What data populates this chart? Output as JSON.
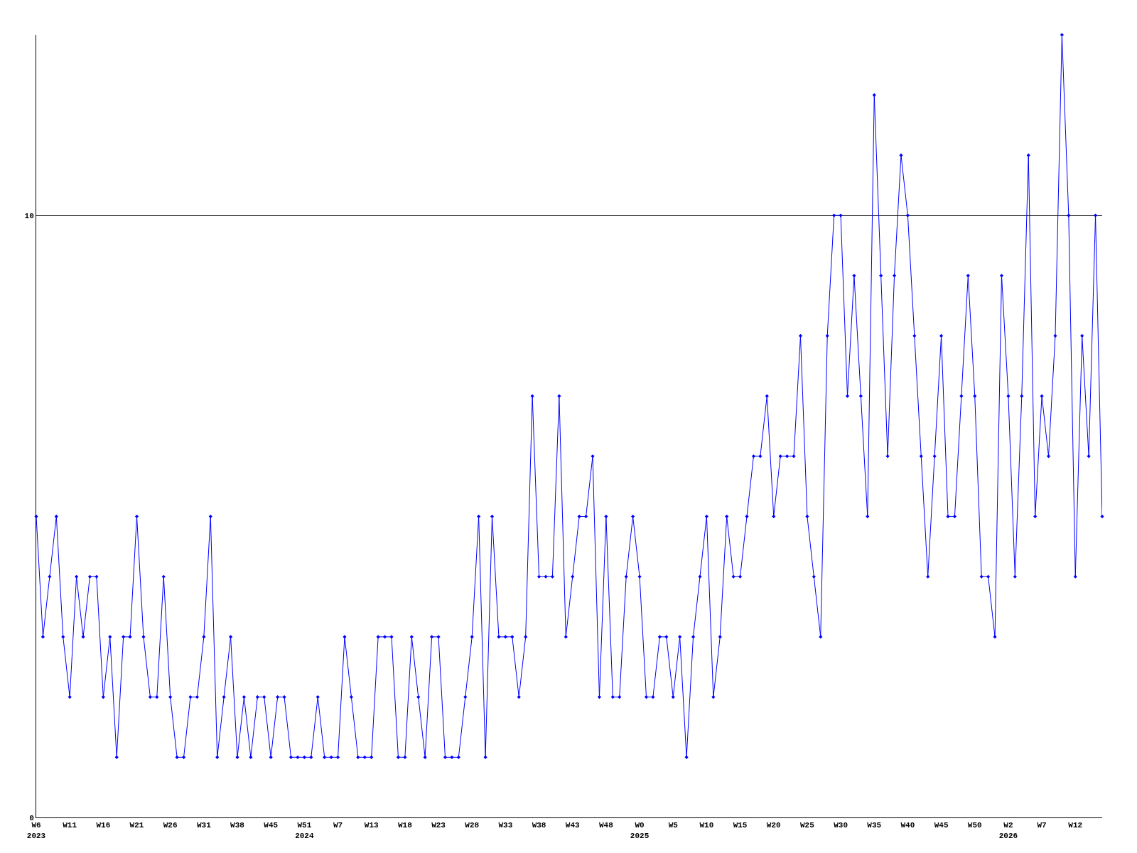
{
  "chart_data": {
    "type": "line",
    "categories": [
      "W6\n2023",
      null,
      null,
      null,
      null,
      "W11",
      null,
      null,
      null,
      null,
      "W16",
      null,
      null,
      null,
      null,
      "W21",
      null,
      null,
      null,
      null,
      "W26",
      null,
      null,
      null,
      null,
      "W31",
      null,
      null,
      null,
      null,
      "W38",
      null,
      null,
      null,
      null,
      "W45",
      null,
      null,
      null,
      null,
      "W51\n2024",
      null,
      null,
      null,
      null,
      "W7",
      null,
      null,
      null,
      null,
      "W13",
      null,
      null,
      null,
      null,
      "W18",
      null,
      null,
      null,
      null,
      "W23",
      null,
      null,
      null,
      null,
      "W28",
      null,
      null,
      null,
      null,
      "W33",
      null,
      null,
      null,
      null,
      "W38",
      null,
      null,
      null,
      null,
      "W43",
      null,
      null,
      null,
      null,
      "W48",
      null,
      null,
      null,
      null,
      "W0\n2025",
      null,
      null,
      null,
      null,
      "W5",
      null,
      null,
      null,
      null,
      "W10",
      null,
      null,
      null,
      null,
      "W15",
      null,
      null,
      null,
      null,
      "W20",
      null,
      null,
      null,
      null,
      "W25",
      null,
      null,
      null,
      null,
      "W30",
      null,
      null,
      null,
      null,
      "W35",
      null,
      null,
      null,
      null,
      "W40",
      null,
      null,
      null,
      null,
      "W45",
      null,
      null,
      null,
      null,
      "W50",
      null,
      null,
      null,
      null,
      "W2\n2026",
      null,
      null,
      null,
      null,
      "W7",
      null,
      null,
      null,
      null,
      "W12",
      null,
      null,
      null,
      null
    ],
    "series": [
      {
        "color": "#0000ff",
        "values": [
          5,
          3,
          4,
          5,
          3,
          2,
          4,
          3,
          4,
          4,
          2,
          3,
          1,
          3,
          3,
          5,
          3,
          2,
          2,
          4,
          2,
          1,
          1,
          2,
          2,
          3,
          5,
          1,
          2,
          3,
          1,
          2,
          1,
          2,
          2,
          1,
          2,
          2,
          1,
          1,
          1,
          1,
          2,
          1,
          1,
          1,
          3,
          2,
          1,
          1,
          1,
          3,
          3,
          3,
          1,
          1,
          3,
          2,
          1,
          3,
          3,
          1,
          1,
          1,
          2,
          3,
          5,
          1,
          5,
          3,
          3,
          3,
          2,
          3,
          7,
          4,
          4,
          4,
          7,
          3,
          4,
          5,
          5,
          6,
          2,
          5,
          2,
          2,
          4,
          5,
          4,
          2,
          2,
          3,
          3,
          2,
          3,
          1,
          3,
          4,
          5,
          2,
          3,
          5,
          4,
          4,
          5,
          6,
          6,
          7,
          5,
          6,
          6,
          6,
          8,
          5,
          4,
          3,
          8,
          10,
          10,
          7,
          9,
          7,
          5,
          12,
          9,
          6,
          9,
          11,
          10,
          8,
          6,
          4,
          6,
          8,
          5,
          5,
          7,
          9,
          7,
          4,
          4,
          3,
          9,
          7,
          4,
          7,
          11,
          5,
          7,
          6,
          8,
          13,
          10,
          4,
          8,
          6,
          10,
          5
        ]
      }
    ],
    "ylim": [
      0,
      13
    ],
    "yticks": [
      0,
      10
    ],
    "grid": "y",
    "marker": "diamond",
    "line_style": "solid",
    "legend": false
  }
}
